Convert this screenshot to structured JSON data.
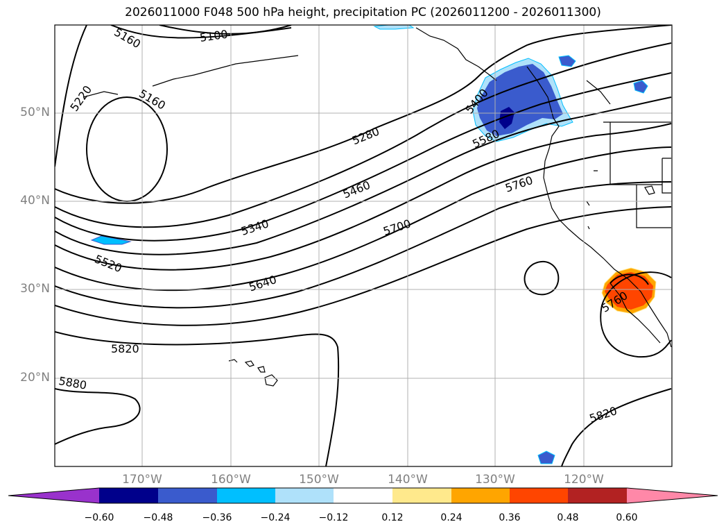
{
  "title": "2026011000 F048 500 hPa height, precipitation PC (2026011200 - 2026011300)",
  "lon_labels": [
    "170°W",
    "160°W",
    "150°W",
    "140°W",
    "130°W",
    "120°W"
  ],
  "lat_labels": [
    "50°N",
    "40°N",
    "30°N",
    "20°N"
  ],
  "contour_labels": [
    "5100",
    "5160",
    "5160",
    "5220",
    "5280",
    "5340",
    "5400",
    "5460",
    "5520",
    "5580",
    "5640",
    "5700",
    "5760",
    "5760",
    "5820",
    "5820",
    "5880"
  ],
  "colorbar": {
    "colors": [
      "#9932cc",
      "#00008b",
      "#3a5bcd",
      "#00bfff",
      "#afe1fa",
      "#ffffff",
      "#ffe98c",
      "#ffa500",
      "#ff4500",
      "#b22222",
      "#ff88a8"
    ],
    "ticks": [
      "−0.60",
      "−0.48",
      "−0.36",
      "−0.24",
      "−0.12",
      "0.12",
      "0.24",
      "0.36",
      "0.48",
      "0.60"
    ]
  },
  "colors": {
    "grid": "#b0b0b0",
    "contour": "#000000",
    "tick_label": "#808080"
  }
}
